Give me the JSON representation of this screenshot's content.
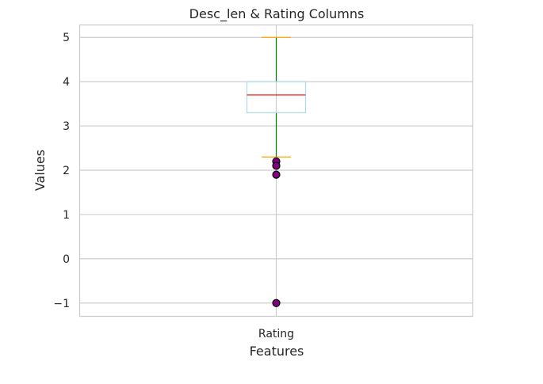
{
  "chart_data": {
    "type": "box",
    "title": "Desc_len & Rating Columns",
    "xlabel": "Features",
    "ylabel": "Values",
    "categories": [
      "Rating"
    ],
    "ylim": [
      -1.29,
      5.29
    ],
    "yticks": [
      -1,
      0,
      1,
      2,
      3,
      4,
      5
    ],
    "ytick_labels": [
      "−1",
      "0",
      "1",
      "2",
      "3",
      "4",
      "5"
    ],
    "grid": true,
    "boxes": [
      {
        "name": "Rating",
        "whisker_low": 2.3,
        "q1": 3.3,
        "median": 3.7,
        "q3": 4.0,
        "whisker_high": 5.0,
        "outliers": [
          2.2,
          2.1,
          1.9,
          -1.0
        ]
      }
    ],
    "colors": {
      "box": "#add8e6",
      "median": "#ff0000",
      "whisker": "#008000",
      "cap": "#ffa500",
      "outlier_fill": "#800080",
      "outlier_edge": "#000000",
      "grid": "#cccccc",
      "frame": "#cccccc"
    }
  }
}
